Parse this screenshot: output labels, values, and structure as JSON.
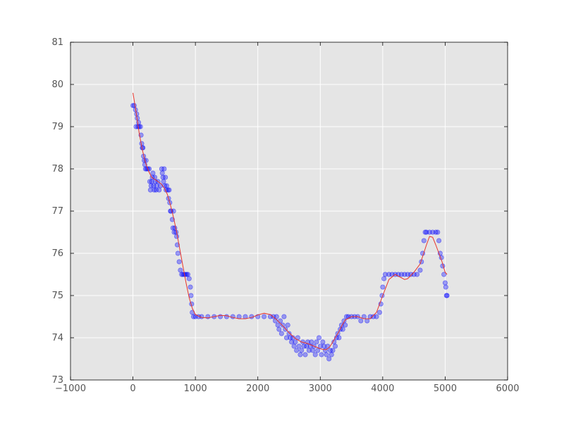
{
  "chart_data": {
    "type": "scatter",
    "title": "",
    "xlabel": "",
    "ylabel": "",
    "xlim": [
      -1000,
      6000
    ],
    "ylim": [
      73,
      81
    ],
    "xticks": [
      -1000,
      0,
      1000,
      2000,
      3000,
      4000,
      5000,
      6000
    ],
    "yticks": [
      73,
      74,
      75,
      76,
      77,
      78,
      79,
      80,
      81
    ],
    "grid": true,
    "colors": {
      "plot_bg": "#e5e5e5",
      "grid": "#ffffff",
      "scatter": "#0000ff",
      "fit_line": "#e8352b",
      "text": "#555555"
    },
    "series": [
      {
        "kind": "scatter",
        "points": [
          [
            0,
            79.5
          ],
          [
            20,
            79.5
          ],
          [
            40,
            79.4
          ],
          [
            50,
            79.0
          ],
          [
            60,
            79.3
          ],
          [
            70,
            79.2
          ],
          [
            80,
            79.0
          ],
          [
            90,
            79.1
          ],
          [
            100,
            79.0
          ],
          [
            120,
            79.0
          ],
          [
            130,
            78.8
          ],
          [
            140,
            78.6
          ],
          [
            150,
            78.5
          ],
          [
            160,
            78.5
          ],
          [
            170,
            78.3
          ],
          [
            180,
            78.2
          ],
          [
            190,
            78.1
          ],
          [
            200,
            78.0
          ],
          [
            210,
            78.2
          ],
          [
            220,
            78.0
          ],
          [
            240,
            78.0
          ],
          [
            260,
            78.0
          ],
          [
            270,
            77.7
          ],
          [
            280,
            77.5
          ],
          [
            290,
            77.6
          ],
          [
            300,
            77.7
          ],
          [
            310,
            77.8
          ],
          [
            320,
            77.9
          ],
          [
            330,
            77.6
          ],
          [
            340,
            77.5
          ],
          [
            350,
            77.8
          ],
          [
            360,
            77.7
          ],
          [
            370,
            77.5
          ],
          [
            380,
            77.6
          ],
          [
            400,
            77.7
          ],
          [
            420,
            77.5
          ],
          [
            440,
            77.6
          ],
          [
            460,
            78.0
          ],
          [
            470,
            77.9
          ],
          [
            480,
            77.8
          ],
          [
            490,
            77.7
          ],
          [
            500,
            78.0
          ],
          [
            510,
            77.6
          ],
          [
            520,
            77.8
          ],
          [
            530,
            77.5
          ],
          [
            540,
            77.6
          ],
          [
            560,
            77.5
          ],
          [
            570,
            77.3
          ],
          [
            580,
            77.5
          ],
          [
            590,
            77.2
          ],
          [
            600,
            77.0
          ],
          [
            610,
            77.0
          ],
          [
            630,
            76.8
          ],
          [
            640,
            76.6
          ],
          [
            650,
            77.0
          ],
          [
            660,
            76.5
          ],
          [
            670,
            76.6
          ],
          [
            690,
            76.5
          ],
          [
            700,
            76.4
          ],
          [
            710,
            76.2
          ],
          [
            720,
            76.0
          ],
          [
            740,
            75.8
          ],
          [
            760,
            75.6
          ],
          [
            780,
            75.5
          ],
          [
            800,
            75.5
          ],
          [
            820,
            75.5
          ],
          [
            840,
            75.5
          ],
          [
            860,
            75.5
          ],
          [
            880,
            75.5
          ],
          [
            900,
            75.4
          ],
          [
            920,
            75.2
          ],
          [
            930,
            75.0
          ],
          [
            940,
            74.8
          ],
          [
            950,
            74.6
          ],
          [
            970,
            74.5
          ],
          [
            1000,
            74.5
          ],
          [
            1050,
            74.5
          ],
          [
            1100,
            74.5
          ],
          [
            1200,
            74.5
          ],
          [
            1300,
            74.5
          ],
          [
            1400,
            74.5
          ],
          [
            1500,
            74.5
          ],
          [
            1600,
            74.5
          ],
          [
            1700,
            74.5
          ],
          [
            1800,
            74.5
          ],
          [
            1900,
            74.5
          ],
          [
            2000,
            74.5
          ],
          [
            2100,
            74.5
          ],
          [
            2200,
            74.5
          ],
          [
            2250,
            74.5
          ],
          [
            2280,
            74.4
          ],
          [
            2300,
            74.5
          ],
          [
            2320,
            74.3
          ],
          [
            2340,
            74.2
          ],
          [
            2360,
            74.4
          ],
          [
            2380,
            74.1
          ],
          [
            2400,
            74.3
          ],
          [
            2420,
            74.5
          ],
          [
            2440,
            74.2
          ],
          [
            2460,
            74.0
          ],
          [
            2480,
            74.3
          ],
          [
            2500,
            74.1
          ],
          [
            2520,
            74.0
          ],
          [
            2540,
            73.9
          ],
          [
            2560,
            74.0
          ],
          [
            2580,
            73.8
          ],
          [
            2600,
            73.9
          ],
          [
            2620,
            73.7
          ],
          [
            2640,
            74.0
          ],
          [
            2660,
            73.8
          ],
          [
            2680,
            73.6
          ],
          [
            2700,
            73.7
          ],
          [
            2720,
            73.9
          ],
          [
            2740,
            73.8
          ],
          [
            2760,
            73.6
          ],
          [
            2780,
            73.8
          ],
          [
            2800,
            73.9
          ],
          [
            2820,
            73.7
          ],
          [
            2840,
            73.8
          ],
          [
            2860,
            73.9
          ],
          [
            2880,
            73.7
          ],
          [
            2900,
            73.8
          ],
          [
            2920,
            73.6
          ],
          [
            2940,
            73.9
          ],
          [
            2960,
            73.7
          ],
          [
            2980,
            74.0
          ],
          [
            3000,
            73.8
          ],
          [
            3020,
            73.6
          ],
          [
            3040,
            73.9
          ],
          [
            3060,
            73.8
          ],
          [
            3080,
            73.7
          ],
          [
            3100,
            73.6
          ],
          [
            3120,
            73.8
          ],
          [
            3140,
            73.5
          ],
          [
            3160,
            73.7
          ],
          [
            3180,
            73.6
          ],
          [
            3200,
            73.7
          ],
          [
            3220,
            73.9
          ],
          [
            3240,
            73.8
          ],
          [
            3260,
            74.0
          ],
          [
            3280,
            74.1
          ],
          [
            3300,
            74.0
          ],
          [
            3320,
            74.2
          ],
          [
            3340,
            74.3
          ],
          [
            3360,
            74.2
          ],
          [
            3380,
            74.4
          ],
          [
            3400,
            74.3
          ],
          [
            3420,
            74.5
          ],
          [
            3450,
            74.5
          ],
          [
            3500,
            74.5
          ],
          [
            3550,
            74.5
          ],
          [
            3600,
            74.5
          ],
          [
            3650,
            74.4
          ],
          [
            3700,
            74.5
          ],
          [
            3750,
            74.4
          ],
          [
            3800,
            74.5
          ],
          [
            3850,
            74.5
          ],
          [
            3900,
            74.5
          ],
          [
            3950,
            74.6
          ],
          [
            3970,
            74.8
          ],
          [
            3990,
            75.0
          ],
          [
            4000,
            75.2
          ],
          [
            4020,
            75.4
          ],
          [
            4040,
            75.5
          ],
          [
            4100,
            75.5
          ],
          [
            4150,
            75.5
          ],
          [
            4200,
            75.5
          ],
          [
            4250,
            75.5
          ],
          [
            4300,
            75.5
          ],
          [
            4350,
            75.5
          ],
          [
            4400,
            75.5
          ],
          [
            4450,
            75.5
          ],
          [
            4500,
            75.5
          ],
          [
            4550,
            75.5
          ],
          [
            4600,
            75.6
          ],
          [
            4620,
            75.8
          ],
          [
            4640,
            76.0
          ],
          [
            4660,
            76.3
          ],
          [
            4680,
            76.5
          ],
          [
            4700,
            76.5
          ],
          [
            4750,
            76.5
          ],
          [
            4800,
            76.5
          ],
          [
            4850,
            76.5
          ],
          [
            4880,
            76.5
          ],
          [
            4900,
            76.3
          ],
          [
            4920,
            76.0
          ],
          [
            4940,
            75.9
          ],
          [
            4960,
            75.7
          ],
          [
            4980,
            75.5
          ],
          [
            5000,
            75.3
          ],
          [
            5010,
            75.2
          ],
          [
            5020,
            75.0
          ],
          [
            5030,
            75.0
          ]
        ]
      },
      {
        "kind": "line",
        "points": [
          [
            0,
            79.8
          ],
          [
            50,
            79.35
          ],
          [
            100,
            78.85
          ],
          [
            150,
            78.45
          ],
          [
            200,
            78.15
          ],
          [
            250,
            77.95
          ],
          [
            300,
            77.8
          ],
          [
            350,
            77.75
          ],
          [
            400,
            77.7
          ],
          [
            450,
            77.65
          ],
          [
            500,
            77.55
          ],
          [
            550,
            77.4
          ],
          [
            600,
            77.15
          ],
          [
            650,
            76.85
          ],
          [
            700,
            76.5
          ],
          [
            750,
            76.1
          ],
          [
            800,
            75.7
          ],
          [
            850,
            75.3
          ],
          [
            900,
            74.95
          ],
          [
            950,
            74.7
          ],
          [
            1000,
            74.55
          ],
          [
            1100,
            74.48
          ],
          [
            1200,
            74.47
          ],
          [
            1300,
            74.5
          ],
          [
            1400,
            74.53
          ],
          [
            1500,
            74.52
          ],
          [
            1600,
            74.48
          ],
          [
            1700,
            74.45
          ],
          [
            1800,
            74.45
          ],
          [
            1900,
            74.48
          ],
          [
            2000,
            74.54
          ],
          [
            2100,
            74.58
          ],
          [
            2200,
            74.55
          ],
          [
            2300,
            74.43
          ],
          [
            2400,
            74.28
          ],
          [
            2500,
            74.12
          ],
          [
            2600,
            73.98
          ],
          [
            2700,
            73.9
          ],
          [
            2800,
            73.86
          ],
          [
            2900,
            73.8
          ],
          [
            3000,
            73.74
          ],
          [
            3050,
            73.72
          ],
          [
            3100,
            73.72
          ],
          [
            3150,
            73.78
          ],
          [
            3200,
            73.9
          ],
          [
            3300,
            74.15
          ],
          [
            3350,
            74.3
          ],
          [
            3400,
            74.42
          ],
          [
            3500,
            74.5
          ],
          [
            3600,
            74.5
          ],
          [
            3700,
            74.45
          ],
          [
            3800,
            74.45
          ],
          [
            3900,
            74.6
          ],
          [
            4000,
            75.0
          ],
          [
            4100,
            75.38
          ],
          [
            4200,
            75.5
          ],
          [
            4300,
            75.42
          ],
          [
            4350,
            75.38
          ],
          [
            4400,
            75.4
          ],
          [
            4500,
            75.55
          ],
          [
            4600,
            75.75
          ],
          [
            4700,
            76.2
          ],
          [
            4750,
            76.4
          ],
          [
            4800,
            76.38
          ],
          [
            4850,
            76.2
          ],
          [
            4900,
            76.0
          ],
          [
            4950,
            75.8
          ],
          [
            5000,
            75.55
          ],
          [
            5030,
            75.5
          ]
        ]
      }
    ]
  }
}
